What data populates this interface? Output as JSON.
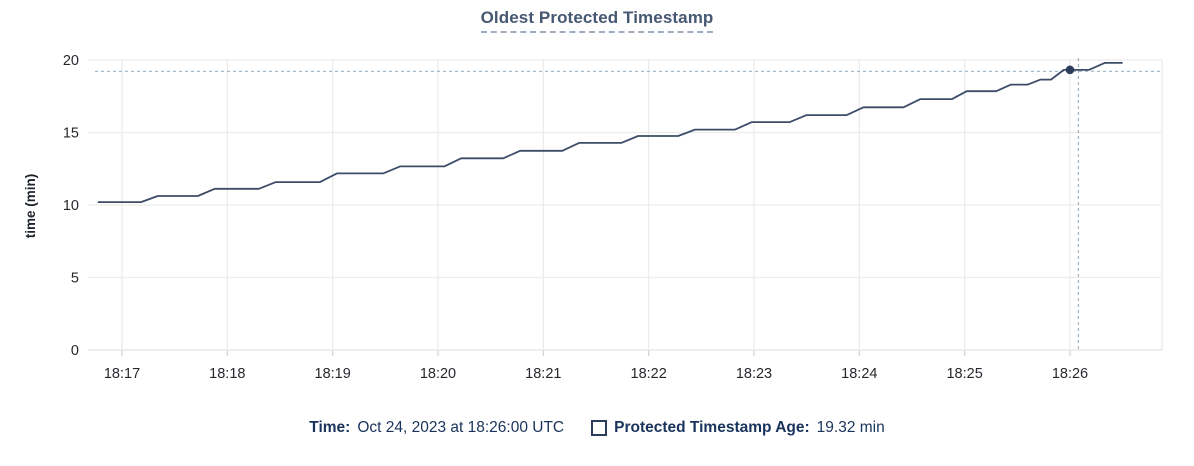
{
  "title": "Oldest Protected Timestamp",
  "footer": {
    "time_label": "Time:",
    "time_value": "Oct 24, 2023 at 18:26:00 UTC",
    "series_label": "Protected Timestamp Age:",
    "series_value": "19.32 min"
  },
  "colors": {
    "line": "#3d4c68",
    "dot": "#2c3e5c",
    "grid": "#ececec",
    "axis": "#e3e3e3",
    "tick_stub": "#d6d6d6",
    "crosshair": "#9db1c1",
    "tick_text": "#26282d",
    "title_text": "#475872",
    "legend_text": "#1a335c"
  },
  "chart_data": {
    "type": "line",
    "title": "Oldest Protected Timestamp",
    "xlabel": "",
    "ylabel": "time (min)",
    "ylim": [
      0,
      20
    ],
    "yticks": [
      0,
      5,
      10,
      15,
      20
    ],
    "xticks": [
      "18:17",
      "18:18",
      "18:19",
      "18:20",
      "18:21",
      "18:22",
      "18:23",
      "18:24",
      "18:25",
      "18:26"
    ],
    "x_domain_minutes_rel_first_tick": [
      -0.26,
      9.88
    ],
    "grid": true,
    "legend_position": "bottom",
    "series": [
      {
        "name": "Protected Timestamp Age",
        "unit": "min",
        "points": [
          [
            -0.23,
            10.2
          ],
          [
            0.18,
            10.2
          ],
          [
            0.34,
            10.62
          ],
          [
            0.72,
            10.62
          ],
          [
            0.88,
            11.12
          ],
          [
            1.3,
            11.12
          ],
          [
            1.46,
            11.58
          ],
          [
            1.88,
            11.58
          ],
          [
            2.04,
            12.18
          ],
          [
            2.48,
            12.18
          ],
          [
            2.64,
            12.66
          ],
          [
            3.06,
            12.66
          ],
          [
            3.22,
            13.22
          ],
          [
            3.62,
            13.22
          ],
          [
            3.78,
            13.74
          ],
          [
            4.18,
            13.74
          ],
          [
            4.34,
            14.28
          ],
          [
            4.74,
            14.28
          ],
          [
            4.9,
            14.76
          ],
          [
            5.28,
            14.76
          ],
          [
            5.44,
            15.2
          ],
          [
            5.82,
            15.2
          ],
          [
            5.98,
            15.72
          ],
          [
            6.34,
            15.72
          ],
          [
            6.5,
            16.2
          ],
          [
            6.88,
            16.2
          ],
          [
            7.04,
            16.74
          ],
          [
            7.42,
            16.74
          ],
          [
            7.58,
            17.3
          ],
          [
            7.88,
            17.3
          ],
          [
            8.02,
            17.85
          ],
          [
            8.3,
            17.85
          ],
          [
            8.44,
            18.3
          ],
          [
            8.6,
            18.3
          ],
          [
            8.72,
            18.65
          ],
          [
            8.82,
            18.65
          ],
          [
            8.94,
            19.32
          ],
          [
            9.18,
            19.32
          ],
          [
            9.33,
            19.8
          ],
          [
            9.5,
            19.8
          ]
        ]
      }
    ],
    "highlight_point": {
      "x": 9.0,
      "y": 19.32,
      "time": "18:26:00",
      "value_label": "19.32 min"
    },
    "crosshair": {
      "x": 9.08,
      "y": 19.22
    }
  }
}
